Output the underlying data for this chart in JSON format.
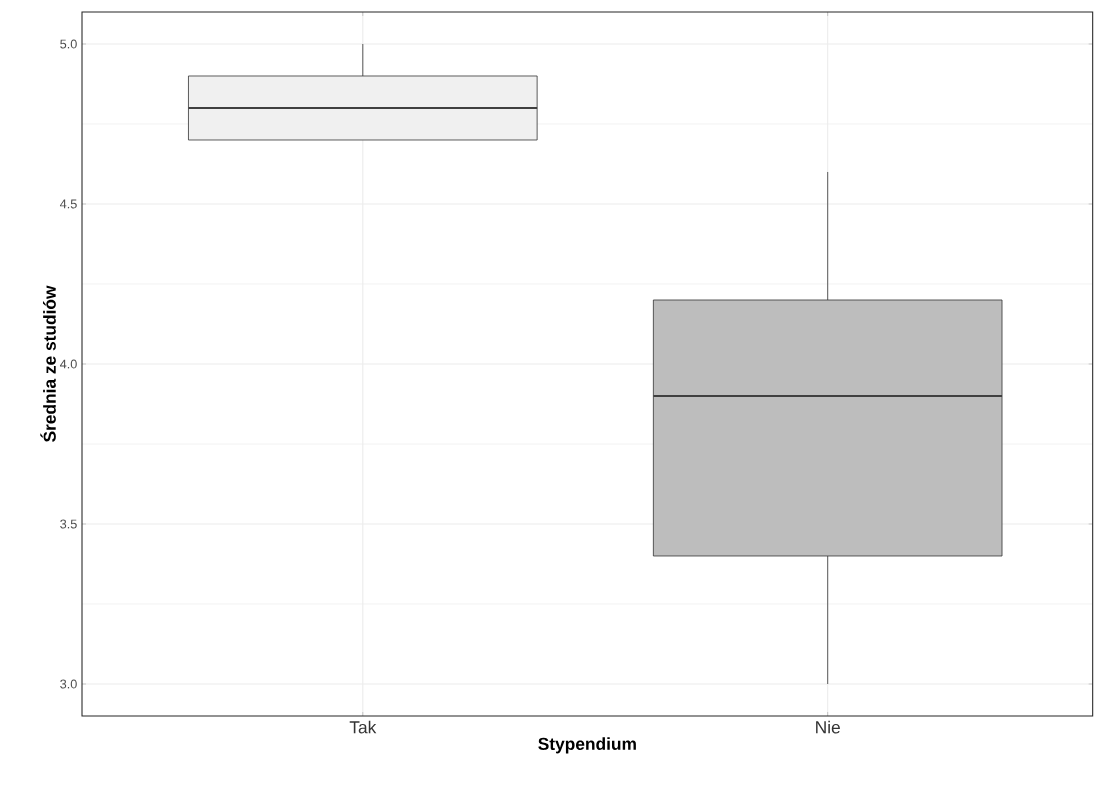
{
  "chart_data": {
    "type": "box",
    "xlabel": "Stypendium",
    "ylabel": "Średnia ze studiów",
    "categories": [
      "Tak",
      "Nie"
    ],
    "colors": [
      "#f0f0f0",
      "#bdbdbd"
    ],
    "boxes": [
      {
        "low": 4.7,
        "q1": 4.7,
        "median": 4.8,
        "q3": 4.9,
        "high": 5.0
      },
      {
        "low": 3.0,
        "q1": 3.4,
        "median": 3.9,
        "q3": 4.2,
        "high": 4.6
      }
    ],
    "ylim": [
      2.9,
      5.1
    ],
    "yticks": [
      {
        "value": 3,
        "label": "3.0"
      },
      {
        "value": 3.5,
        "label": "3.5"
      },
      {
        "value": 4,
        "label": "4.0"
      },
      {
        "value": 4.5,
        "label": "4.5"
      },
      {
        "value": 5,
        "label": "5.0"
      }
    ],
    "grid": true
  }
}
